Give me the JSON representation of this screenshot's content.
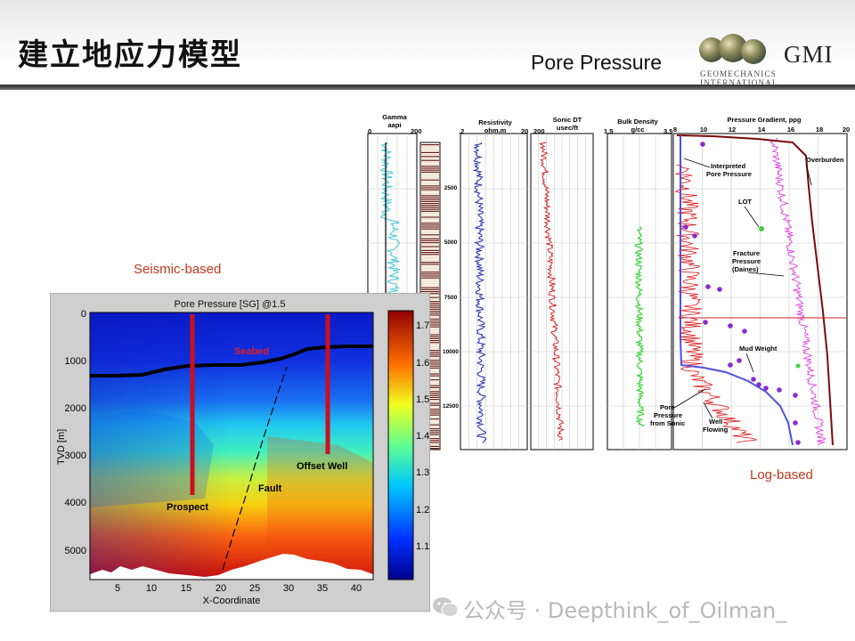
{
  "header": {
    "title_cn": "建立地应力模型",
    "subtitle": "Pore Pressure",
    "logo_name": "GMI",
    "logo_sub": "GEOMECHANICS INTERNATIONAL"
  },
  "labels": {
    "seismic": "Seismic-based",
    "log": "Log-based"
  },
  "seismic_plot": {
    "title": "Pore Pressure [SG] @1.5",
    "xlabel": "X-Coordinate",
    "ylabel": "TVD [m]",
    "x_ticks": [
      "5",
      "10",
      "15",
      "20",
      "25",
      "30",
      "35",
      "40"
    ],
    "y_ticks": [
      "0",
      "1000",
      "2000",
      "3000",
      "4000",
      "5000"
    ],
    "colorbar_ticks": [
      "1.7",
      "1.6",
      "1.5",
      "1.4",
      "1.3",
      "1.2",
      "1.1"
    ],
    "annotations": {
      "seabed": "Seabed",
      "offset_well": "Offset Well",
      "fault": "Fault",
      "prospect": "Prospect"
    }
  },
  "log_panel": {
    "tracks": {
      "gamma": {
        "title1": "Gamma",
        "title2": "aapi",
        "min": "0",
        "max": "200"
      },
      "resistivity": {
        "title1": "Resistivity",
        "title2": "ohm.m",
        "min": ".2",
        "max": "20"
      },
      "sonic": {
        "title1": "Sonic DT",
        "title2": "usec/ft",
        "min": "200"
      },
      "density": {
        "title1": "Bulk Density",
        "title2": "g/cc",
        "min": "1.5",
        "max": "3.5"
      },
      "pressure": {
        "title1": "Pressure Gradient, ppg",
        "ticks": [
          "8",
          "10",
          "12",
          "14",
          "16",
          "18",
          "20"
        ]
      }
    },
    "depth_ticks": [
      "2500",
      "5000",
      "7500",
      "10000",
      "12500"
    ],
    "annotations": {
      "interpreted1": "Interpreted",
      "interpreted2": "Pore Pressure",
      "overburden": "Overburden",
      "lot": "LOT",
      "fracture1": "Fracture",
      "fracture2": "Pressure",
      "fracture3": "(Daines)",
      "mud_weight": "Mud Weight",
      "pore1": "Pore",
      "pore2": "Pressure",
      "pore3": "from Sonic",
      "well1": "Well",
      "well2": "Flowing"
    }
  },
  "watermark": "公众号 · Deepthink_of_Oilman_"
}
